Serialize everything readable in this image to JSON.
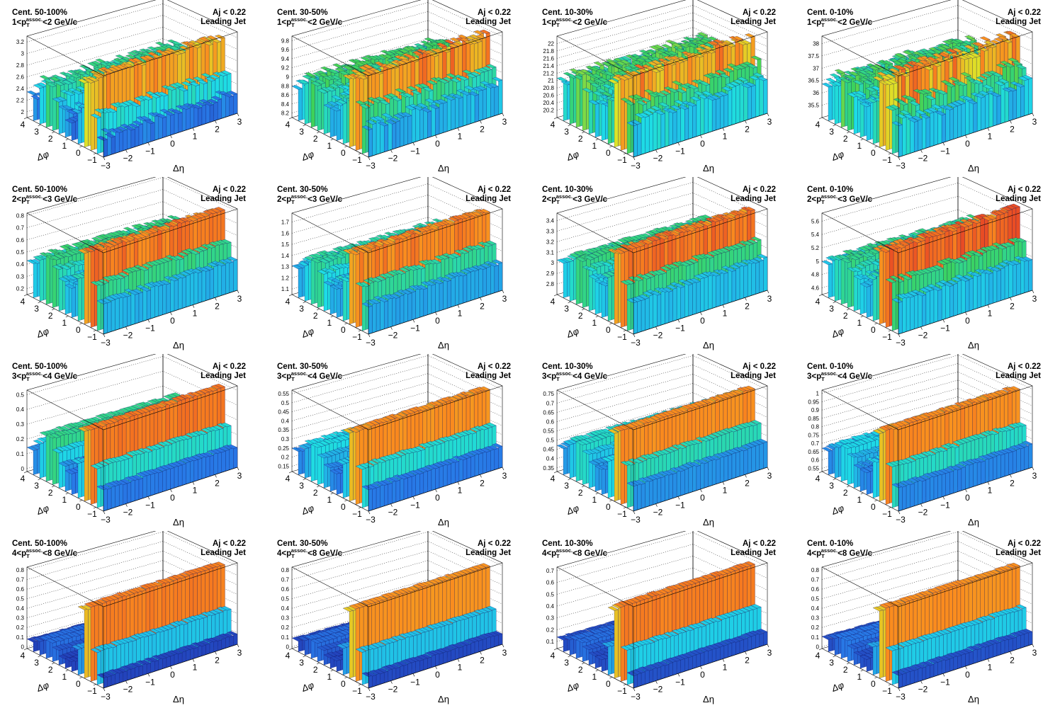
{
  "figure": {
    "x_axis_symbol": "Δη",
    "y_axis_symbol": "Δφ",
    "pt_prefix": "p",
    "pt_sup": "assoc.",
    "pt_sub": "T",
    "eta_ticks": [
      "−3",
      "−2",
      "−1",
      "0",
      "1",
      "2",
      "3"
    ],
    "phi_ticks": [
      "4",
      "3",
      "2",
      "1",
      "0",
      "−1"
    ]
  },
  "chart_data": [
    {
      "type": "surface",
      "row": 0,
      "col": 0,
      "centrality": "Cent. 50-100%",
      "pt_low": "1",
      "pt_high": "2",
      "pt_unit": "GeV/c",
      "aj": "Aj < 0.22",
      "jet": "Leading Jet",
      "zlim": [
        1.9,
        3.3
      ],
      "zticks": [
        "2",
        "2.2",
        "2.4",
        "2.6",
        "2.8",
        "3",
        "3.2"
      ],
      "ns_peak": 3.2,
      "as_peak": 2.7,
      "baseline": 2.2,
      "noise": 0.25
    },
    {
      "type": "surface",
      "row": 0,
      "col": 1,
      "centrality": "Cent. 30-50%",
      "pt_low": "1",
      "pt_high": "2",
      "pt_unit": "GeV/c",
      "aj": "Aj < 0.22",
      "jet": "Leading Jet",
      "zlim": [
        8.1,
        9.9
      ],
      "zticks": [
        "8.2",
        "8.4",
        "8.6",
        "8.8",
        "9",
        "9.2",
        "9.4",
        "9.6",
        "9.8"
      ],
      "ns_peak": 9.8,
      "as_peak": 9.2,
      "baseline": 8.7,
      "noise": 0.3
    },
    {
      "type": "surface",
      "row": 0,
      "col": 2,
      "centrality": "Cent. 10-30%",
      "pt_low": "1",
      "pt_high": "2",
      "pt_unit": "GeV/c",
      "aj": "Aj < 0.22",
      "jet": "Leading Jet",
      "zlim": [
        20.0,
        22.2
      ],
      "zticks": [
        "20.2",
        "20.4",
        "20.6",
        "20.8",
        "21",
        "21.2",
        "21.4",
        "21.6",
        "21.8",
        "22"
      ],
      "ns_peak": 22.0,
      "as_peak": 21.4,
      "baseline": 20.9,
      "noise": 0.35
    },
    {
      "type": "surface",
      "row": 0,
      "col": 3,
      "centrality": "Cent. 0-10%",
      "pt_low": "1",
      "pt_high": "2",
      "pt_unit": "GeV/c",
      "aj": "Aj < 0.22",
      "jet": "Leading Jet",
      "zlim": [
        35.0,
        38.3
      ],
      "zticks": [
        "35.5",
        "36",
        "36.5",
        "37",
        "37.5",
        "38"
      ],
      "ns_peak": 38.0,
      "as_peak": 37.0,
      "baseline": 36.3,
      "noise": 0.45
    },
    {
      "type": "surface",
      "row": 1,
      "col": 0,
      "centrality": "Cent. 50-100%",
      "pt_low": "2",
      "pt_high": "3",
      "pt_unit": "GeV/c",
      "aj": "Aj < 0.22",
      "jet": "Leading Jet",
      "zlim": [
        0.15,
        0.82
      ],
      "zticks": [
        "0.2",
        "0.3",
        "0.4",
        "0.5",
        "0.6",
        "0.7",
        "0.8"
      ],
      "ns_peak": 0.8,
      "as_peak": 0.55,
      "baseline": 0.38,
      "noise": 0.12
    },
    {
      "type": "surface",
      "row": 1,
      "col": 1,
      "centrality": "Cent. 30-50%",
      "pt_low": "2",
      "pt_high": "3",
      "pt_unit": "GeV/c",
      "aj": "Aj < 0.22",
      "jet": "Leading Jet",
      "zlim": [
        1.05,
        1.78
      ],
      "zticks": [
        "1.1",
        "1.2",
        "1.3",
        "1.4",
        "1.5",
        "1.6",
        "1.7"
      ],
      "ns_peak": 1.75,
      "as_peak": 1.45,
      "baseline": 1.28,
      "noise": 0.12
    },
    {
      "type": "surface",
      "row": 1,
      "col": 2,
      "centrality": "Cent. 10-30%",
      "pt_low": "2",
      "pt_high": "3",
      "pt_unit": "GeV/c",
      "aj": "Aj < 0.22",
      "jet": "Leading Jet",
      "zlim": [
        2.7,
        3.47
      ],
      "zticks": [
        "2.8",
        "2.9",
        "3",
        "3.1",
        "3.2",
        "3.3",
        "3.4"
      ],
      "ns_peak": 3.45,
      "as_peak": 3.15,
      "baseline": 2.98,
      "noise": 0.12
    },
    {
      "type": "surface",
      "row": 1,
      "col": 3,
      "centrality": "Cent. 0-10%",
      "pt_low": "2",
      "pt_high": "3",
      "pt_unit": "GeV/c",
      "aj": "Aj < 0.22",
      "jet": "Leading Jet",
      "zlim": [
        4.5,
        5.72
      ],
      "zticks": [
        "4.6",
        "4.8",
        "5",
        "5.2",
        "5.4",
        "5.6"
      ],
      "ns_peak": 5.7,
      "as_peak": 5.2,
      "baseline": 4.95,
      "noise": 0.15
    },
    {
      "type": "surface",
      "row": 2,
      "col": 0,
      "centrality": "Cent. 50-100%",
      "pt_low": "3",
      "pt_high": "4",
      "pt_unit": "GeV/c",
      "aj": "Aj < 0.22",
      "jet": "Leading Jet",
      "zlim": [
        -0.02,
        0.53
      ],
      "zticks": [
        "0",
        "0.1",
        "0.2",
        "0.3",
        "0.4",
        "0.5"
      ],
      "ns_peak": 0.52,
      "as_peak": 0.3,
      "baseline": 0.1,
      "noise": 0.06
    },
    {
      "type": "surface",
      "row": 2,
      "col": 1,
      "centrality": "Cent. 30-50%",
      "pt_low": "3",
      "pt_high": "4",
      "pt_unit": "GeV/c",
      "aj": "Aj < 0.22",
      "jet": "Leading Jet",
      "zlim": [
        0.12,
        0.57
      ],
      "zticks": [
        "0.15",
        "0.2",
        "0.25",
        "0.3",
        "0.35",
        "0.4",
        "0.45",
        "0.5",
        "0.55"
      ],
      "ns_peak": 0.55,
      "as_peak": 0.33,
      "baseline": 0.22,
      "noise": 0.06
    },
    {
      "type": "surface",
      "row": 2,
      "col": 2,
      "centrality": "Cent. 10-30%",
      "pt_low": "3",
      "pt_high": "4",
      "pt_unit": "GeV/c",
      "aj": "Aj < 0.22",
      "jet": "Leading Jet",
      "zlim": [
        0.33,
        0.77
      ],
      "zticks": [
        "0.35",
        "0.4",
        "0.45",
        "0.5",
        "0.55",
        "0.6",
        "0.65",
        "0.7",
        "0.75"
      ],
      "ns_peak": 0.75,
      "as_peak": 0.55,
      "baseline": 0.45,
      "noise": 0.06
    },
    {
      "type": "surface",
      "row": 2,
      "col": 3,
      "centrality": "Cent. 0-10%",
      "pt_low": "3",
      "pt_high": "4",
      "pt_unit": "GeV/c",
      "aj": "Aj < 0.22",
      "jet": "Leading Jet",
      "zlim": [
        0.53,
        1.02
      ],
      "zticks": [
        "0.55",
        "0.6",
        "0.65",
        "0.7",
        "0.75",
        "0.8",
        "0.85",
        "0.9",
        "0.95",
        "1"
      ],
      "ns_peak": 1.0,
      "as_peak": 0.75,
      "baseline": 0.65,
      "noise": 0.07
    },
    {
      "type": "surface",
      "row": 3,
      "col": 0,
      "centrality": "Cent. 50-100%",
      "pt_low": "4",
      "pt_high": "8",
      "pt_unit": "GeV/c",
      "aj": "Aj < 0.22",
      "jet": "Leading Jet",
      "zlim": [
        -0.02,
        0.83
      ],
      "zticks": [
        "0",
        "0.1",
        "0.2",
        "0.3",
        "0.4",
        "0.5",
        "0.6",
        "0.7",
        "0.8"
      ],
      "ns_peak": 0.82,
      "as_peak": 0.18,
      "baseline": 0.05,
      "noise": 0.04
    },
    {
      "type": "surface",
      "row": 3,
      "col": 1,
      "centrality": "Cent. 30-50%",
      "pt_low": "4",
      "pt_high": "8",
      "pt_unit": "GeV/c",
      "aj": "Aj < 0.22",
      "jet": "Leading Jet",
      "zlim": [
        -0.02,
        0.83
      ],
      "zticks": [
        "0",
        "0.1",
        "0.2",
        "0.3",
        "0.4",
        "0.5",
        "0.6",
        "0.7",
        "0.8"
      ],
      "ns_peak": 0.8,
      "as_peak": 0.18,
      "baseline": 0.06,
      "noise": 0.04
    },
    {
      "type": "surface",
      "row": 3,
      "col": 2,
      "centrality": "Cent. 10-30%",
      "pt_low": "4",
      "pt_high": "8",
      "pt_unit": "GeV/c",
      "aj": "Aj < 0.22",
      "jet": "Leading Jet",
      "zlim": [
        0.04,
        0.73
      ],
      "zticks": [
        "0.1",
        "0.2",
        "0.3",
        "0.4",
        "0.5",
        "0.6",
        "0.7"
      ],
      "ns_peak": 0.72,
      "as_peak": 0.2,
      "baseline": 0.12,
      "noise": 0.04
    },
    {
      "type": "surface",
      "row": 3,
      "col": 3,
      "centrality": "Cent. 0-10%",
      "pt_low": "4",
      "pt_high": "8",
      "pt_unit": "GeV/c",
      "aj": "Aj < 0.22",
      "jet": "Leading Jet",
      "zlim": [
        -0.02,
        0.83
      ],
      "zticks": [
        "0",
        "0.1",
        "0.2",
        "0.3",
        "0.4",
        "0.5",
        "0.6",
        "0.7",
        "0.8"
      ],
      "ns_peak": 0.8,
      "as_peak": 0.2,
      "baseline": 0.08,
      "noise": 0.04
    }
  ]
}
